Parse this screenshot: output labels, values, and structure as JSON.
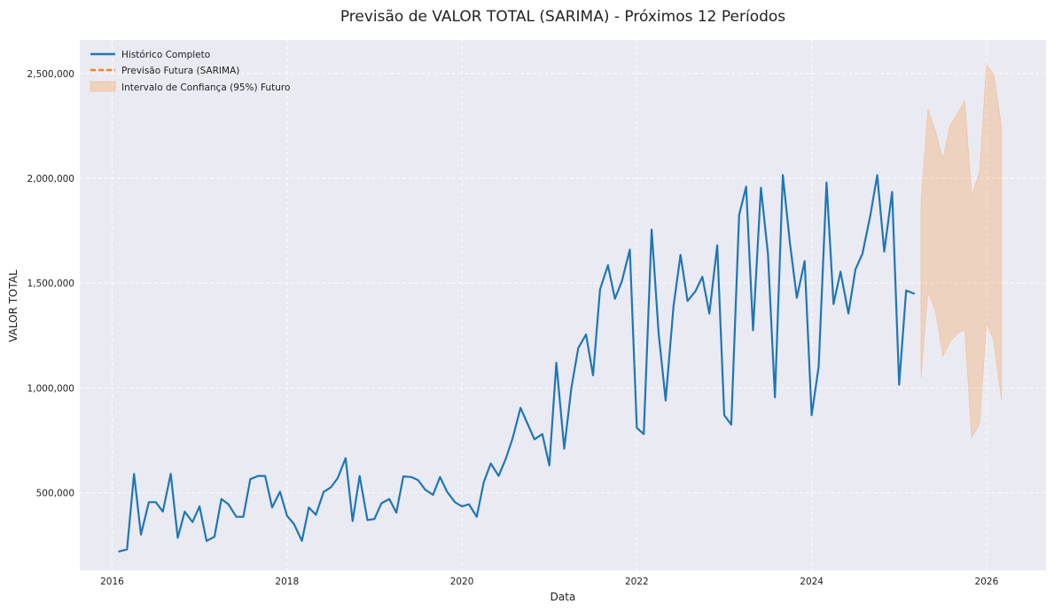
{
  "chart_data": {
    "type": "line",
    "title": "Previsão de VALOR TOTAL (SARIMA) - Próximos 12 Períodos",
    "xlabel": "Data",
    "ylabel": "VALOR TOTAL",
    "xlim": [
      2015.63,
      2026.68
    ],
    "ylim": [
      130000,
      2660000
    ],
    "x_ticks": [
      2016,
      2018,
      2020,
      2022,
      2024,
      2026
    ],
    "x_tick_labels": [
      "2016",
      "2018",
      "2020",
      "2022",
      "2024",
      "2026"
    ],
    "y_ticks": [
      500000,
      1000000,
      1500000,
      2000000,
      2500000
    ],
    "y_tick_labels": [
      "500,000",
      "1,000,000",
      "1,500,000",
      "2,000,000",
      "2,500,000"
    ],
    "grid": true,
    "legend_position": "top-left",
    "colors": {
      "plot_background": "#eaeaf2",
      "historical": "#1f77b4",
      "forecast": "#ff7f0e",
      "confidence_fill": "#ff7f0e"
    },
    "series": [
      {
        "name": "Histórico Completo",
        "style": "solid",
        "x": [
          2016.08,
          2016.17,
          2016.25,
          2016.33,
          2016.42,
          2016.5,
          2016.58,
          2016.67,
          2016.75,
          2016.83,
          2016.92,
          2017.0,
          2017.08,
          2017.17,
          2017.25,
          2017.33,
          2017.42,
          2017.5,
          2017.58,
          2017.67,
          2017.75,
          2017.83,
          2017.92,
          2018.0,
          2018.08,
          2018.17,
          2018.25,
          2018.33,
          2018.42,
          2018.5,
          2018.58,
          2018.67,
          2018.75,
          2018.83,
          2018.92,
          2019.0,
          2019.08,
          2019.17,
          2019.25,
          2019.33,
          2019.42,
          2019.5,
          2019.58,
          2019.67,
          2019.75,
          2019.83,
          2019.92,
          2020.0,
          2020.08,
          2020.17,
          2020.25,
          2020.33,
          2020.42,
          2020.5,
          2020.58,
          2020.67,
          2020.75,
          2020.83,
          2020.92,
          2021.0,
          2021.08,
          2021.17,
          2021.25,
          2021.33,
          2021.42,
          2021.5,
          2021.58,
          2021.67,
          2021.75,
          2021.83,
          2021.92,
          2022.0,
          2022.08,
          2022.17,
          2022.25,
          2022.33,
          2022.42,
          2022.5,
          2022.58,
          2022.67,
          2022.75,
          2022.83,
          2022.92,
          2023.0,
          2023.08,
          2023.17,
          2023.25,
          2023.33,
          2023.42,
          2023.5,
          2023.58,
          2023.67,
          2023.75,
          2023.83,
          2023.92,
          2024.0,
          2024.08,
          2024.17,
          2024.25,
          2024.33,
          2024.42,
          2024.5,
          2024.58,
          2024.67,
          2024.75,
          2024.83,
          2024.92,
          2025.0,
          2025.08,
          2025.17
        ],
        "y": [
          220000,
          230000,
          590000,
          300000,
          455000,
          455000,
          410000,
          590000,
          285000,
          410000,
          360000,
          435000,
          270000,
          290000,
          470000,
          445000,
          385000,
          385000,
          565000,
          580000,
          580000,
          430000,
          505000,
          390000,
          350000,
          270000,
          430000,
          395000,
          505000,
          525000,
          570000,
          665000,
          365000,
          580000,
          370000,
          375000,
          450000,
          470000,
          405000,
          578000,
          575000,
          560000,
          515000,
          490000,
          575000,
          505000,
          455000,
          435000,
          445000,
          385000,
          550000,
          640000,
          580000,
          660000,
          760000,
          905000,
          830000,
          755000,
          780000,
          630000,
          1120000,
          710000,
          995000,
          1190000,
          1255000,
          1060000,
          1470000,
          1585000,
          1425000,
          1510000,
          1660000,
          810000,
          780000,
          1755000,
          1260000,
          940000,
          1390000,
          1635000,
          1415000,
          1460000,
          1530000,
          1355000,
          1680000,
          870000,
          825000,
          1825000,
          1960000,
          1275000,
          1955000,
          1640000,
          955000,
          2015000,
          1695000,
          1430000,
          1605000,
          870000,
          1100000,
          1980000,
          1400000,
          1555000,
          1355000,
          1565000,
          1640000,
          1820000,
          2015000,
          1650000,
          1935000,
          1015000,
          1465000,
          1450000
        ]
      }
    ],
    "forecast_band": {
      "name": "Intervalo de Confiança (95%) Futuro",
      "x": [
        2025.25,
        2025.33,
        2025.42,
        2025.5,
        2025.58,
        2025.67,
        2025.75,
        2025.83,
        2025.92,
        2026.0,
        2026.08,
        2026.17
      ],
      "lower": [
        1050000,
        1460000,
        1360000,
        1150000,
        1220000,
        1260000,
        1280000,
        760000,
        830000,
        1310000,
        1230000,
        940000
      ],
      "upper": [
        1880000,
        2330000,
        2220000,
        2090000,
        2250000,
        2310000,
        2370000,
        1915000,
        2030000,
        2540000,
        2500000,
        2250000
      ]
    },
    "legend": [
      {
        "label": "Histórico Completo",
        "style": "solid"
      },
      {
        "label": "Previsão Futura (SARIMA)",
        "style": "dashed"
      },
      {
        "label": "Intervalo de Confiança (95%) Futuro",
        "style": "band"
      }
    ]
  }
}
